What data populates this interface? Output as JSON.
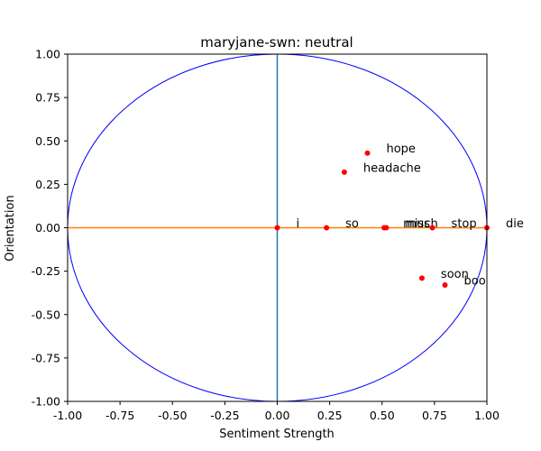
{
  "chart_data": {
    "type": "scatter",
    "title": "maryjane-swn: neutral",
    "xlabel": "Sentiment Strength",
    "ylabel": "Orientation",
    "xlim": [
      -1.0,
      1.0
    ],
    "ylim": [
      -1.0,
      1.0
    ],
    "xticks": [
      "-1.00",
      "-0.75",
      "-0.50",
      "-0.25",
      "0.00",
      "0.25",
      "0.50",
      "0.75",
      "1.00"
    ],
    "yticks": [
      "-1.00",
      "-0.75",
      "-0.50",
      "-0.25",
      "0.00",
      "0.25",
      "0.50",
      "0.75",
      "1.00"
    ],
    "grid": false,
    "colors": {
      "circle": "#0000ff",
      "vertical_line": "#1f77b4",
      "horizontal_line": "#ff7f0e",
      "points": "#ff0000"
    },
    "points": [
      {
        "label": "i",
        "x": 0.0,
        "y": 0.0
      },
      {
        "label": "so",
        "x": 0.235,
        "y": 0.0
      },
      {
        "label": "miss",
        "x": 0.51,
        "y": 0.0
      },
      {
        "label": "much",
        "x": 0.52,
        "y": 0.0
      },
      {
        "label": "stop",
        "x": 0.74,
        "y": 0.0
      },
      {
        "label": "die",
        "x": 1.0,
        "y": 0.0
      },
      {
        "label": "hope",
        "x": 0.43,
        "y": 0.43
      },
      {
        "label": "headache",
        "x": 0.32,
        "y": 0.32
      },
      {
        "label": "soon",
        "x": 0.69,
        "y": -0.29
      },
      {
        "label": "boo",
        "x": 0.8,
        "y": -0.33
      }
    ]
  }
}
